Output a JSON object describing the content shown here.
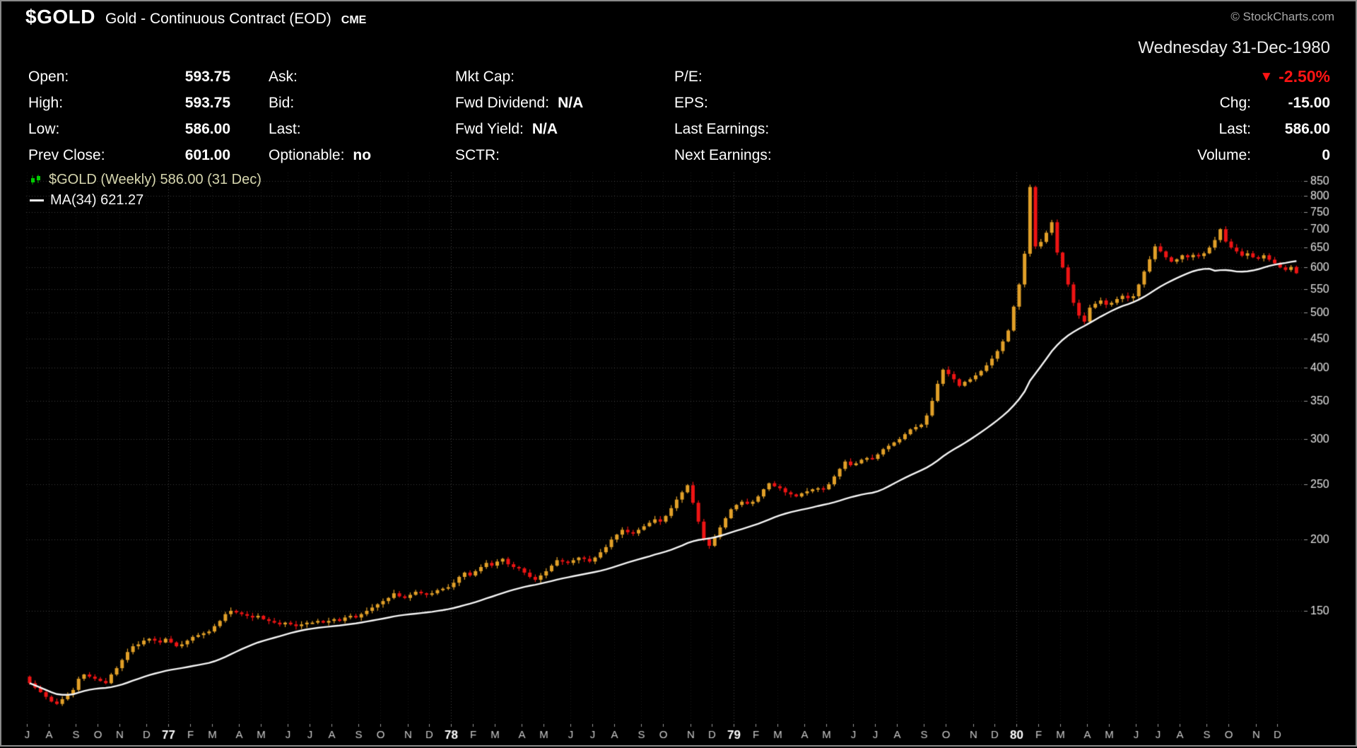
{
  "header": {
    "symbol": "$GOLD",
    "description": "Gold - Continuous Contract (EOD)",
    "exchange": "CME",
    "watermark": "© StockCharts.com"
  },
  "date_line": "Wednesday 31-Dec-1980",
  "quote_panel": {
    "col1": [
      {
        "label": "Open:",
        "value": "593.75"
      },
      {
        "label": "High:",
        "value": "593.75"
      },
      {
        "label": "Low:",
        "value": "586.00"
      },
      {
        "label": "Prev Close:",
        "value": "601.00"
      }
    ],
    "col2": [
      {
        "label": "Ask:",
        "value": ""
      },
      {
        "label": "Bid:",
        "value": ""
      },
      {
        "label": "Last:",
        "value": ""
      },
      {
        "label": "Optionable:",
        "value": "no"
      }
    ],
    "col3": [
      {
        "label": "Mkt Cap:",
        "value": ""
      },
      {
        "label": "Fwd Dividend:",
        "value": "N/A"
      },
      {
        "label": "Fwd Yield:",
        "value": "N/A"
      },
      {
        "label": "SCTR:",
        "value": ""
      }
    ],
    "col4": [
      {
        "label": "P/E:",
        "value": ""
      },
      {
        "label": "EPS:",
        "value": ""
      },
      {
        "label": "Last Earnings:",
        "value": ""
      },
      {
        "label": "Next Earnings:",
        "value": ""
      }
    ],
    "right": {
      "down_triangle": "▼",
      "change_pct": "-2.50%",
      "rows": [
        {
          "label": "Chg:",
          "value": "-15.00"
        },
        {
          "label": "Last:",
          "value": "586.00"
        },
        {
          "label": "Volume:",
          "value": "0"
        }
      ]
    }
  },
  "legend": {
    "series": "$GOLD (Weekly) 586.00 (31 Dec)",
    "ma": "MA(34) 621.27"
  },
  "chart_data": {
    "type": "candlestick",
    "symbol": "$GOLD",
    "timeframe": "Weekly",
    "last_close": 586.0,
    "last_date": "31 Dec",
    "scale": "log",
    "ma_period": 34,
    "ma_last_value": 621.27,
    "ma_color": "#f5f5f5",
    "up_color": "#e2a028",
    "down_color": "#ee1414",
    "y_ticks": [
      850,
      800,
      750,
      700,
      650,
      600,
      550,
      500,
      450,
      400,
      350,
      300,
      250,
      200,
      150
    ],
    "y_range": [
      95,
      880
    ],
    "x_months": [
      {
        "label": "J",
        "weeks": 4
      },
      {
        "label": "A",
        "weeks": 5
      },
      {
        "label": "S",
        "weeks": 4
      },
      {
        "label": "O",
        "weeks": 4
      },
      {
        "label": "N",
        "weeks": 5
      },
      {
        "label": "D",
        "weeks": 4
      },
      {
        "label": "77",
        "weeks": 4
      },
      {
        "label": "F",
        "weeks": 4
      },
      {
        "label": "M",
        "weeks": 5
      },
      {
        "label": "A",
        "weeks": 4
      },
      {
        "label": "M",
        "weeks": 5
      },
      {
        "label": "J",
        "weeks": 4
      },
      {
        "label": "J",
        "weeks": 4
      },
      {
        "label": "A",
        "weeks": 5
      },
      {
        "label": "S",
        "weeks": 4
      },
      {
        "label": "O",
        "weeks": 5
      },
      {
        "label": "N",
        "weeks": 4
      },
      {
        "label": "D",
        "weeks": 4
      },
      {
        "label": "78",
        "weeks": 4
      },
      {
        "label": "F",
        "weeks": 4
      },
      {
        "label": "M",
        "weeks": 5
      },
      {
        "label": "A",
        "weeks": 4
      },
      {
        "label": "M",
        "weeks": 5
      },
      {
        "label": "J",
        "weeks": 4
      },
      {
        "label": "J",
        "weeks": 4
      },
      {
        "label": "A",
        "weeks": 5
      },
      {
        "label": "S",
        "weeks": 4
      },
      {
        "label": "O",
        "weeks": 5
      },
      {
        "label": "N",
        "weeks": 4
      },
      {
        "label": "D",
        "weeks": 4
      },
      {
        "label": "79",
        "weeks": 4
      },
      {
        "label": "F",
        "weeks": 4
      },
      {
        "label": "M",
        "weeks": 5
      },
      {
        "label": "A",
        "weeks": 4
      },
      {
        "label": "M",
        "weeks": 5
      },
      {
        "label": "J",
        "weeks": 4
      },
      {
        "label": "J",
        "weeks": 4
      },
      {
        "label": "A",
        "weeks": 5
      },
      {
        "label": "S",
        "weeks": 4
      },
      {
        "label": "O",
        "weeks": 5
      },
      {
        "label": "N",
        "weeks": 4
      },
      {
        "label": "D",
        "weeks": 4
      },
      {
        "label": "80",
        "weeks": 4
      },
      {
        "label": "F",
        "weeks": 4
      },
      {
        "label": "M",
        "weeks": 5
      },
      {
        "label": "A",
        "weeks": 4
      },
      {
        "label": "M",
        "weeks": 5
      },
      {
        "label": "J",
        "weeks": 4
      },
      {
        "label": "J",
        "weeks": 4
      },
      {
        "label": "A",
        "weeks": 5
      },
      {
        "label": "S",
        "weeks": 4
      },
      {
        "label": "O",
        "weeks": 5
      },
      {
        "label": "N",
        "weeks": 4
      },
      {
        "label": "D",
        "weeks": 4
      }
    ],
    "weekly_closes": [
      112,
      110,
      108,
      106,
      104,
      103,
      105,
      107,
      109,
      114,
      116,
      115,
      114,
      113,
      112,
      116,
      119,
      123,
      127,
      130,
      131,
      133,
      134,
      133,
      132,
      134,
      132,
      130,
      131,
      133,
      135,
      136,
      137,
      138,
      141,
      144,
      148,
      150,
      149,
      148,
      147,
      146,
      147,
      145,
      144,
      143,
      142,
      143,
      142,
      141,
      142,
      143,
      143,
      144,
      143,
      144,
      145,
      144,
      146,
      147,
      146,
      148,
      150,
      152,
      154,
      156,
      158,
      161,
      159,
      158,
      160,
      162,
      161,
      160,
      161,
      163,
      164,
      165,
      168,
      172,
      175,
      173,
      176,
      179,
      182,
      180,
      183,
      185,
      181,
      179,
      178,
      175,
      172,
      170,
      173,
      176,
      180,
      184,
      183,
      182,
      184,
      186,
      185,
      183,
      186,
      190,
      194,
      200,
      204,
      208,
      206,
      205,
      208,
      211,
      214,
      217,
      215,
      220,
      227,
      235,
      242,
      249,
      232,
      215,
      200,
      195,
      202,
      210,
      218,
      226,
      230,
      233,
      231,
      233,
      238,
      245,
      251,
      248,
      246,
      242,
      240,
      238,
      241,
      243,
      245,
      246,
      245,
      250,
      258,
      266,
      274,
      270,
      272,
      276,
      278,
      277,
      282,
      288,
      292,
      296,
      300,
      306,
      312,
      315,
      318,
      330,
      350,
      375,
      397,
      390,
      382,
      372,
      378,
      382,
      388,
      395,
      404,
      415,
      428,
      445,
      465,
      512,
      560,
      634,
      830,
      653,
      665,
      690,
      720,
      637,
      600,
      560,
      520,
      494,
      482,
      510,
      518,
      525,
      516,
      520,
      528,
      535,
      530,
      534,
      560,
      590,
      620,
      653,
      640,
      625,
      614,
      620,
      630,
      625,
      631,
      628,
      635,
      650,
      670,
      700,
      666,
      650,
      640,
      629,
      635,
      625,
      622,
      630,
      619,
      610,
      600,
      594,
      601,
      586
    ]
  }
}
